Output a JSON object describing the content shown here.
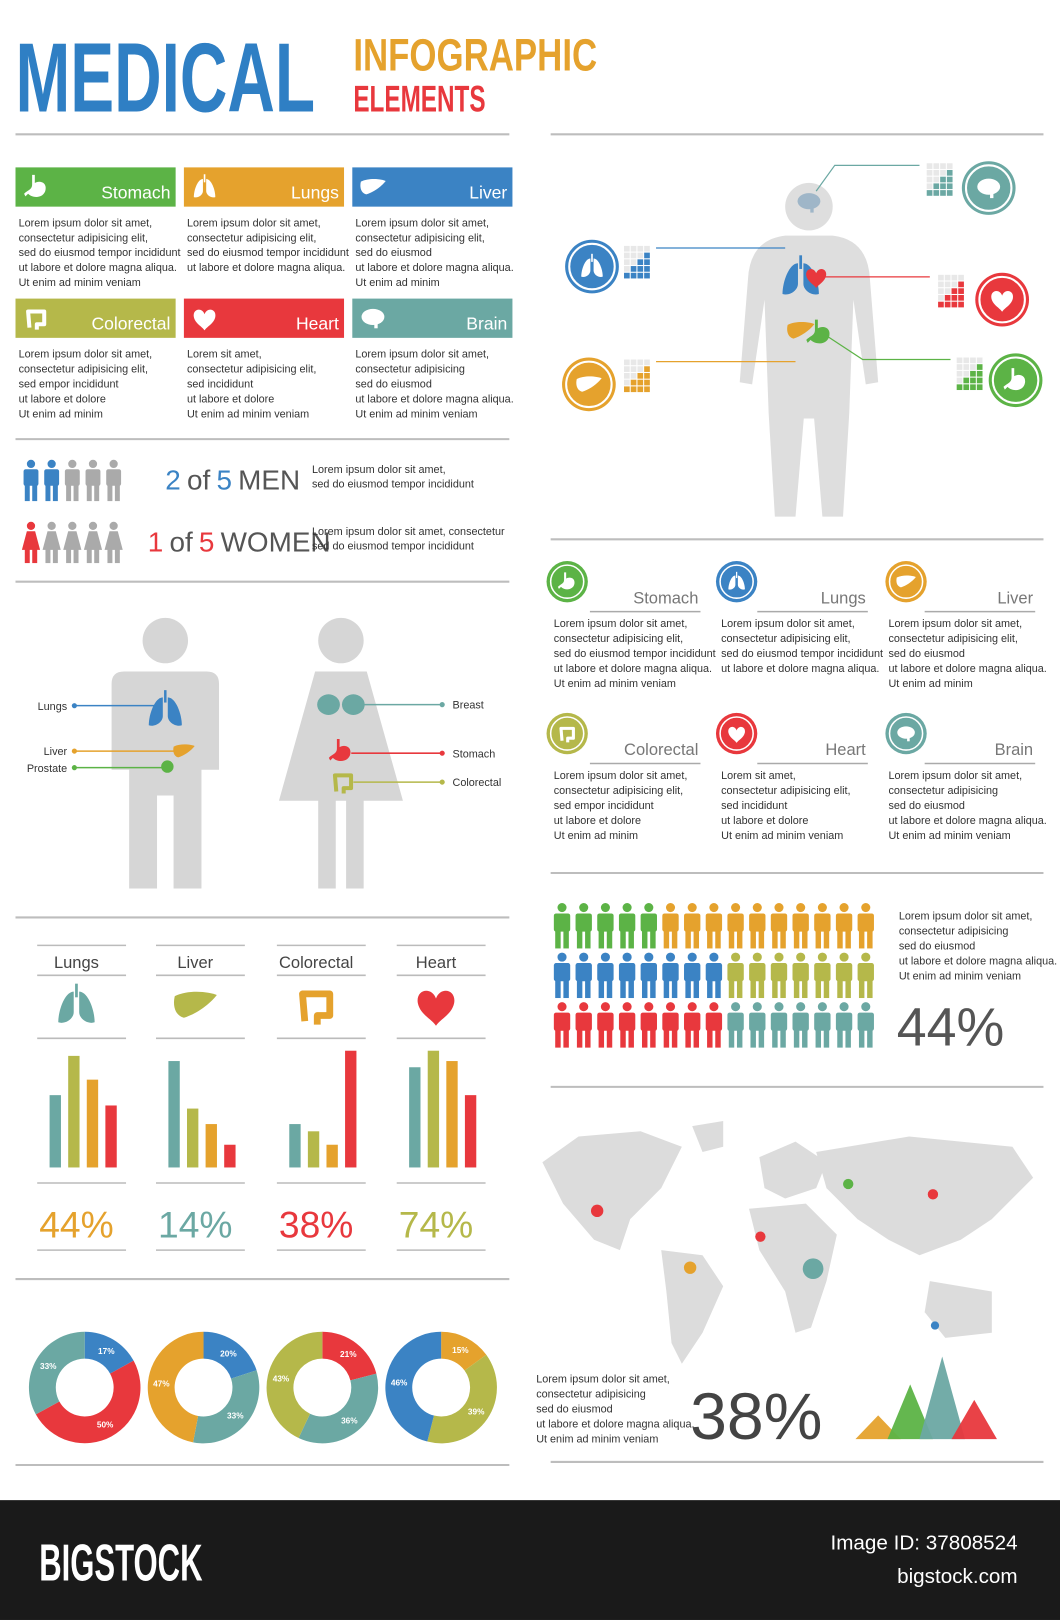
{
  "header": {
    "title": "MEDICAL",
    "subtitle": "INFOGRAPHIC",
    "subtitle2": "ELEMENTS"
  },
  "organ_cards": [
    {
      "name": "Stomach",
      "color": "#5cb346",
      "lines": [
        "Lorem ipsum dolor sit amet,",
        "consectetur adipisicing elit,",
        "sed do eiusmod tempor incididunt",
        "ut labore et dolore magna aliqua.",
        "Ut enim ad minim veniam"
      ]
    },
    {
      "name": "Lungs",
      "color": "#e5a22d",
      "lines": [
        "Lorem ipsum dolor sit amet,",
        "consectetur adipisicing elit,",
        "sed do eiusmod tempor incididunt",
        "ut labore et dolore magna aliqua."
      ]
    },
    {
      "name": "Liver",
      "color": "#3b83c4",
      "lines": [
        "Lorem ipsum dolor sit amet,",
        "consectetur adipisicing elit,",
        "sed do eiusmod",
        "ut labore et dolore magna aliqua.",
        "Ut enim ad minim"
      ]
    },
    {
      "name": "Colorectal",
      "color": "#b5b84a",
      "lines": [
        "Lorem ipsum dolor sit amet,",
        "consectetur adipisicing elit,",
        "sed empor incididunt",
        "ut labore et dolore",
        "Ut enim ad minim"
      ]
    },
    {
      "name": "Heart",
      "color": "#e8383d",
      "lines": [
        "Lorem  sit amet,",
        "consectetur adipisicing elit,",
        "sed incididunt",
        "ut labore et dolore",
        "Ut enim ad minim veniam"
      ]
    },
    {
      "name": "Brain",
      "color": "#6ba8a3",
      "lines": [
        "Lorem ipsum dolor sit amet,",
        "consectetur adipisicing",
        "sed do eiusmod",
        "ut labore et dolore magna aliqua.",
        "Ut enim ad minim veniam"
      ]
    }
  ],
  "stats": [
    {
      "count": 2,
      "of": "of",
      "total": 5,
      "label": "MEN",
      "color": "#3b83c4",
      "lines": [
        "Lorem ipsum dolor sit amet,",
        "sed do eiusmod tempor incididunt"
      ]
    },
    {
      "count": 1,
      "of": "of",
      "total": 5,
      "label": "WOMEN",
      "color": "#e8383d",
      "lines": [
        "Lorem ipsum dolor sit amet, consectetur",
        "sed do eiusmod tempor incididunt"
      ]
    }
  ],
  "body_labels": {
    "male": [
      "Lungs",
      "Liver",
      "Prostate"
    ],
    "female": [
      "Breast",
      "Stomach",
      "Colorectal"
    ]
  },
  "organ_bars": [
    {
      "name": "Lungs",
      "percent": "44%",
      "color": "#e5a22d",
      "bars": [
        70,
        108,
        85,
        60
      ]
    },
    {
      "name": "Liver",
      "percent": "14%",
      "color": "#6ba8a3",
      "bars": [
        103,
        57,
        42,
        22
      ]
    },
    {
      "name": "Colorectal",
      "percent": "38%",
      "color": "#e8383d",
      "bars": [
        42,
        35,
        22,
        113
      ]
    },
    {
      "name": "Heart",
      "percent": "74%",
      "color": "#b5b84a",
      "bars": [
        97,
        113,
        103,
        70
      ]
    }
  ],
  "bar_colors": [
    "#6ba8a3",
    "#b5b84a",
    "#e5a22d",
    "#e8383d"
  ],
  "donuts": [
    [
      {
        "value": 17,
        "label": "17%",
        "color": "#3b83c4"
      },
      {
        "value": 50,
        "label": "50%",
        "color": "#e8383d"
      },
      {
        "value": 33,
        "label": "33%",
        "color": "#6ba8a3"
      }
    ],
    [
      {
        "value": 20,
        "label": "20%",
        "color": "#3b83c4"
      },
      {
        "value": 33,
        "label": "33%",
        "color": "#6ba8a3"
      },
      {
        "value": 47,
        "label": "47%",
        "color": "#e5a22d"
      }
    ],
    [
      {
        "value": 21,
        "label": "21%",
        "color": "#e8383d"
      },
      {
        "value": 36,
        "label": "36%",
        "color": "#6ba8a3"
      },
      {
        "value": 43,
        "label": "43%",
        "color": "#b5b84a"
      }
    ],
    [
      {
        "value": 15,
        "label": "15%",
        "color": "#e5a22d"
      },
      {
        "value": 39,
        "label": "39%",
        "color": "#b5b84a"
      },
      {
        "value": 46,
        "label": "46%",
        "color": "#3b83c4"
      }
    ]
  ],
  "organ_list": [
    {
      "name": "Stomach",
      "color": "#5cb346",
      "lines": [
        "Lorem ipsum dolor sit amet,",
        "consectetur adipisicing elit,",
        "sed do eiusmod tempor incididunt",
        "ut labore et dolore magna aliqua.",
        "Ut enim ad minim veniam"
      ]
    },
    {
      "name": "Lungs",
      "color": "#3b83c4",
      "lines": [
        "Lorem ipsum dolor sit amet,",
        "consectetur adipisicing elit,",
        "sed do eiusmod tempor incididunt",
        "ut labore et dolore magna aliqua."
      ]
    },
    {
      "name": "Liver",
      "color": "#e5a22d",
      "lines": [
        "Lorem ipsum dolor sit amet,",
        "consectetur adipisicing elit,",
        "sed do eiusmod",
        "ut labore et dolore magna aliqua.",
        "Ut enim ad minim"
      ]
    },
    {
      "name": "Colorectal",
      "color": "#b5b84a",
      "lines": [
        "Lorem ipsum dolor sit amet,",
        "consectetur adipisicing elit,",
        "sed empor incididunt",
        "ut labore et dolore",
        "Ut enim ad minim"
      ]
    },
    {
      "name": "Heart",
      "color": "#e8383d",
      "lines": [
        "Lorem  sit amet,",
        "consectetur adipisicing elit,",
        "sed incididunt",
        "ut labore et dolore",
        "Ut enim ad minim veniam"
      ]
    },
    {
      "name": "Brain",
      "color": "#6ba8a3",
      "lines": [
        "Lorem ipsum dolor sit amet,",
        "consectetur adipisicing",
        "sed do eiusmod",
        "ut labore et dolore magna aliqua.",
        "Ut enim ad minim veniam"
      ]
    }
  ],
  "population": {
    "rows": [
      [
        {
          "color": "#5cb346",
          "count": 5
        },
        {
          "color": "#e5a22d",
          "count": 10
        }
      ],
      [
        {
          "color": "#3b83c4",
          "count": 8
        },
        {
          "color": "#b5b84a",
          "count": 7
        }
      ],
      [
        {
          "color": "#e8383d",
          "count": 8
        },
        {
          "color": "#6ba8a3",
          "count": 7
        }
      ]
    ],
    "lines": [
      "Lorem ipsum dolor sit amet,",
      "consectetur adipisicing",
      "sed do eiusmod",
      "ut labore et dolore magna aliqua.",
      "Ut enim ad minim veniam"
    ],
    "percent": "44%"
  },
  "map": {
    "lines": [
      "Lorem ipsum dolor sit amet,",
      "consectetur adipisicing",
      "sed do eiusmod",
      "ut labore et dolore magna aliqua.",
      "Ut enim ad minim veniam"
    ],
    "percent": "38%",
    "peaks": [
      {
        "value": 23,
        "color": "#e5a22d"
      },
      {
        "value": 53,
        "color": "#5cb346"
      },
      {
        "value": 80,
        "color": "#6ba8a3"
      },
      {
        "value": 38,
        "color": "#e8383d"
      }
    ]
  },
  "footer": {
    "brand": "BIGSTOCK",
    "image_id": "Image ID: 37808524",
    "site": "bigstock.com"
  }
}
